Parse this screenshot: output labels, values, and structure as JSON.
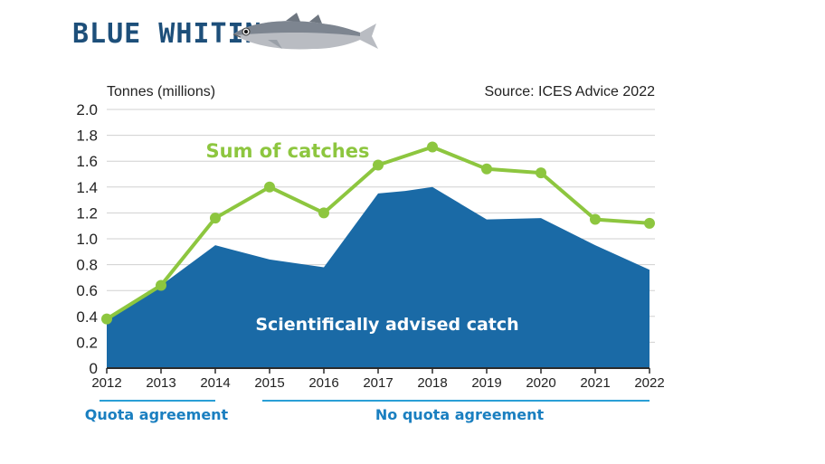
{
  "header": {
    "title": "BLUE WHITING",
    "fish_icon": "fish-icon"
  },
  "colors": {
    "title": "#1d4f7a",
    "area": "#1a6aa6",
    "line": "#8dc63f",
    "axis": "#2b2b2b",
    "grid": "#d0d0d0",
    "bracket": "#2a9fd6",
    "bracket_text": "#1a7fc0",
    "catch_label": "#ffffff"
  },
  "chart_data": {
    "type": "area",
    "ylabel": "Tonnes (millions)",
    "source": "Source: ICES Advice 2022",
    "ylim": [
      0,
      2.0
    ],
    "yticks": [
      "2.0",
      "1.8",
      "1.6",
      "1.4",
      "1.2",
      "1.0",
      "0.8",
      "0.6",
      "0.4",
      "0.2",
      "0"
    ],
    "grid": true,
    "x": [
      "2012",
      "2013",
      "2014",
      "2015",
      "2016",
      "2017",
      "2018",
      "2019",
      "2020",
      "2021",
      "2022"
    ],
    "series": [
      {
        "name": "Scientifically advised catch",
        "kind": "area",
        "points": [
          [
            2012,
            0.38
          ],
          [
            2013,
            0.64
          ],
          [
            2014,
            0.95
          ],
          [
            2015,
            0.84
          ],
          [
            2016,
            0.78
          ],
          [
            2017,
            1.35
          ],
          [
            2017.5,
            1.37
          ],
          [
            2018,
            1.4
          ],
          [
            2019,
            1.15
          ],
          [
            2020,
            1.16
          ],
          [
            2021,
            0.95
          ],
          [
            2022,
            0.76
          ]
        ]
      },
      {
        "name": "Sum of catches",
        "kind": "line",
        "points": [
          [
            2012,
            0.38
          ],
          [
            2013,
            0.64
          ],
          [
            2014,
            1.16
          ],
          [
            2015,
            1.4
          ],
          [
            2016,
            1.2
          ],
          [
            2017,
            1.57
          ],
          [
            2018,
            1.71
          ],
          [
            2019,
            1.54
          ],
          [
            2020,
            1.51
          ],
          [
            2021,
            1.15
          ],
          [
            2022,
            1.12
          ]
        ]
      }
    ],
    "annotations": {
      "line_label": "Sum of catches",
      "area_label": "Scientifically advised catch"
    },
    "periods": [
      {
        "label": "Quota agreement",
        "from": 2012,
        "to": 2014
      },
      {
        "label": "No quota agreement",
        "from": 2015,
        "to": 2022
      }
    ]
  }
}
